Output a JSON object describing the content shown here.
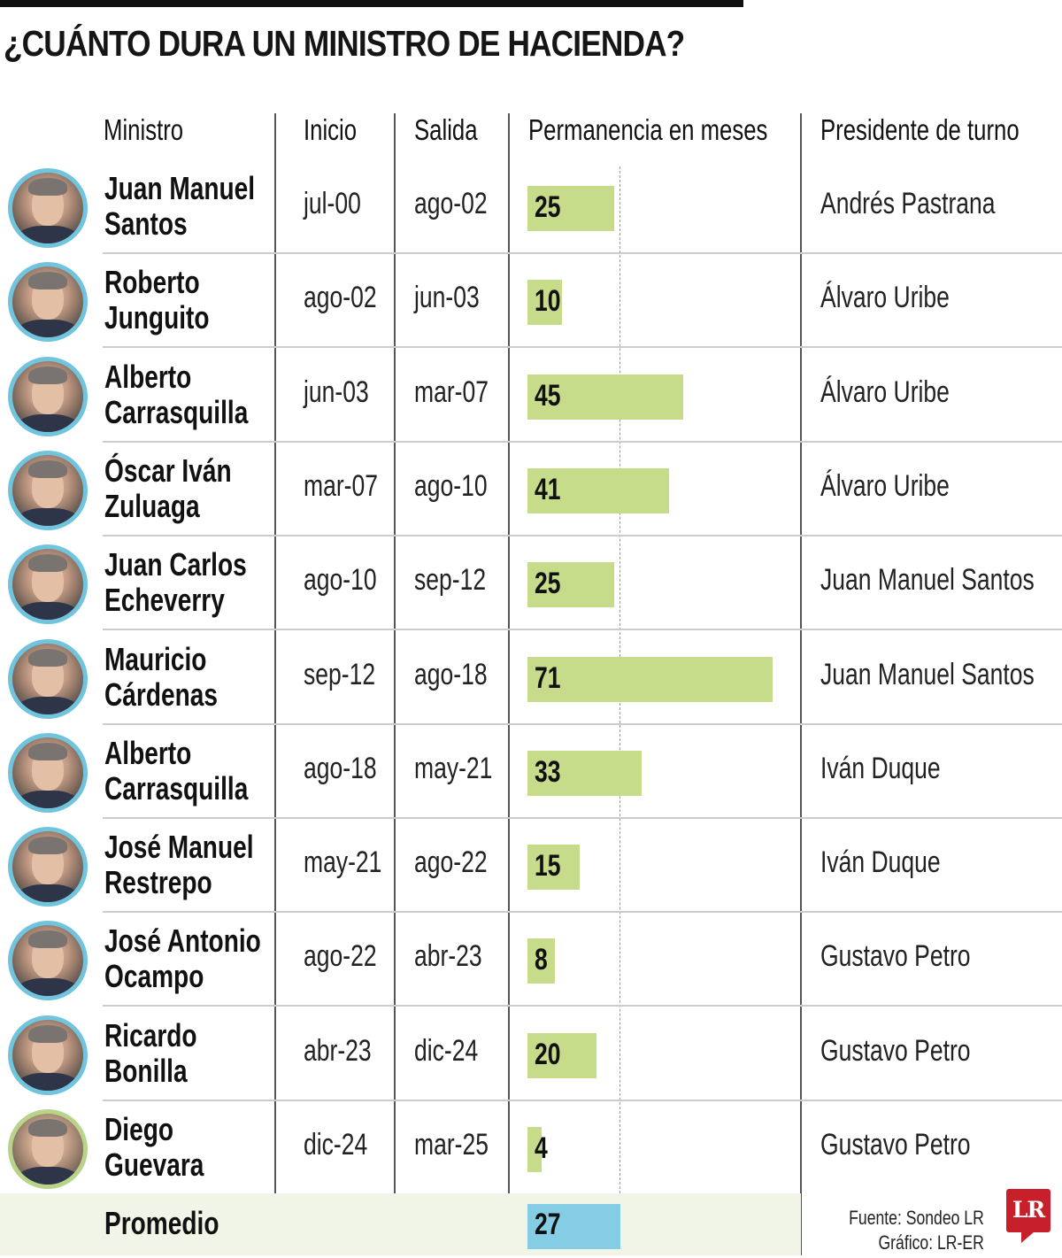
{
  "title": "¿CUÁNTO DURA UN MINISTRO DE HACIENDA?",
  "headers": {
    "ministro": "Ministro",
    "inicio": "Inicio",
    "salida": "Salida",
    "permanencia": "Permanencia en meses",
    "presidente": "Presidente de turno"
  },
  "colors": {
    "bar": "#c7dc8b",
    "average_bar": "#85cde4",
    "avatar_border": "#71c4dd",
    "current_avatar_border": "#b7d48a",
    "average_row_bg": "#f1f5e8",
    "logo": "#c8202a"
  },
  "rows": [
    {
      "name_line1": "Juan Manuel",
      "name_line2": "Santos",
      "inicio": "jul-00",
      "salida": "ago-02",
      "meses": "25",
      "presidente": "Andrés Pastrana"
    },
    {
      "name_line1": "Roberto",
      "name_line2": "Junguito",
      "inicio": "ago-02",
      "salida": "jun-03",
      "meses": "10",
      "presidente": "Álvaro Uribe"
    },
    {
      "name_line1": "Alberto",
      "name_line2": "Carrasquilla",
      "inicio": "jun-03",
      "salida": "mar-07",
      "meses": "45",
      "presidente": "Álvaro Uribe"
    },
    {
      "name_line1": "Óscar Iván",
      "name_line2": "Zuluaga",
      "inicio": "mar-07",
      "salida": "ago-10",
      "meses": "41",
      "presidente": "Álvaro Uribe"
    },
    {
      "name_line1": "Juan Carlos",
      "name_line2": "Echeverry",
      "inicio": "ago-10",
      "salida": "sep-12",
      "meses": "25",
      "presidente": "Juan Manuel Santos"
    },
    {
      "name_line1": "Mauricio",
      "name_line2": "Cárdenas",
      "inicio": "sep-12",
      "salida": "ago-18",
      "meses": "71",
      "presidente": "Juan Manuel Santos"
    },
    {
      "name_line1": "Alberto",
      "name_line2": "Carrasquilla",
      "inicio": "ago-18",
      "salida": "may-21",
      "meses": "33",
      "presidente": "Iván Duque"
    },
    {
      "name_line1": "José Manuel",
      "name_line2": "Restrepo",
      "inicio": "may-21",
      "salida": "ago-22",
      "meses": "15",
      "presidente": "Iván Duque"
    },
    {
      "name_line1": "José Antonio",
      "name_line2": "Ocampo",
      "inicio": "ago-22",
      "salida": "abr-23",
      "meses": "8",
      "presidente": "Gustavo Petro"
    },
    {
      "name_line1": "Ricardo",
      "name_line2": "Bonilla",
      "inicio": "abr-23",
      "salida": "dic-24",
      "meses": "20",
      "presidente": "Gustavo Petro"
    },
    {
      "name_line1": "Diego",
      "name_line2": "Guevara",
      "inicio": "dic-24",
      "salida": "mar-25",
      "meses": "4",
      "presidente": "Gustavo Petro"
    }
  ],
  "average": {
    "label": "Promedio",
    "meses": "27"
  },
  "credits": {
    "fuente": "Fuente: Sondeo LR",
    "grafico": "Gráfico: LR-ER"
  },
  "logo": "LR",
  "chart_data": {
    "type": "bar",
    "title": "¿CUÁNTO DURA UN MINISTRO DE HACIENDA?",
    "xlabel": "Permanencia en meses",
    "ylabel": "Ministro",
    "orientation": "horizontal",
    "categories": [
      "Juan Manuel Santos",
      "Roberto Junguito",
      "Alberto Carrasquilla",
      "Óscar Iván Zuluaga",
      "Juan Carlos Echeverry",
      "Mauricio Cárdenas",
      "Alberto Carrasquilla",
      "José Manuel Restrepo",
      "José Antonio Ocampo",
      "Ricardo Bonilla",
      "Diego Guevara"
    ],
    "values": [
      25,
      10,
      45,
      41,
      25,
      71,
      33,
      15,
      8,
      20,
      4
    ],
    "inicio": [
      "jul-00",
      "ago-02",
      "jun-03",
      "mar-07",
      "ago-10",
      "sep-12",
      "ago-18",
      "may-21",
      "ago-22",
      "abr-23",
      "dic-24"
    ],
    "salida": [
      "ago-02",
      "jun-03",
      "mar-07",
      "ago-10",
      "sep-12",
      "ago-18",
      "may-21",
      "ago-22",
      "abr-23",
      "dic-24",
      "mar-25"
    ],
    "presidente": [
      "Andrés Pastrana",
      "Álvaro Uribe",
      "Álvaro Uribe",
      "Álvaro Uribe",
      "Juan Manuel Santos",
      "Juan Manuel Santos",
      "Iván Duque",
      "Iván Duque",
      "Gustavo Petro",
      "Gustavo Petro",
      "Gustavo Petro"
    ],
    "average": 27,
    "reference_line": {
      "value": 27,
      "style": "dashed"
    },
    "xlim": [
      0,
      75
    ],
    "grid": false,
    "source": "Fuente: Sondeo LR"
  }
}
